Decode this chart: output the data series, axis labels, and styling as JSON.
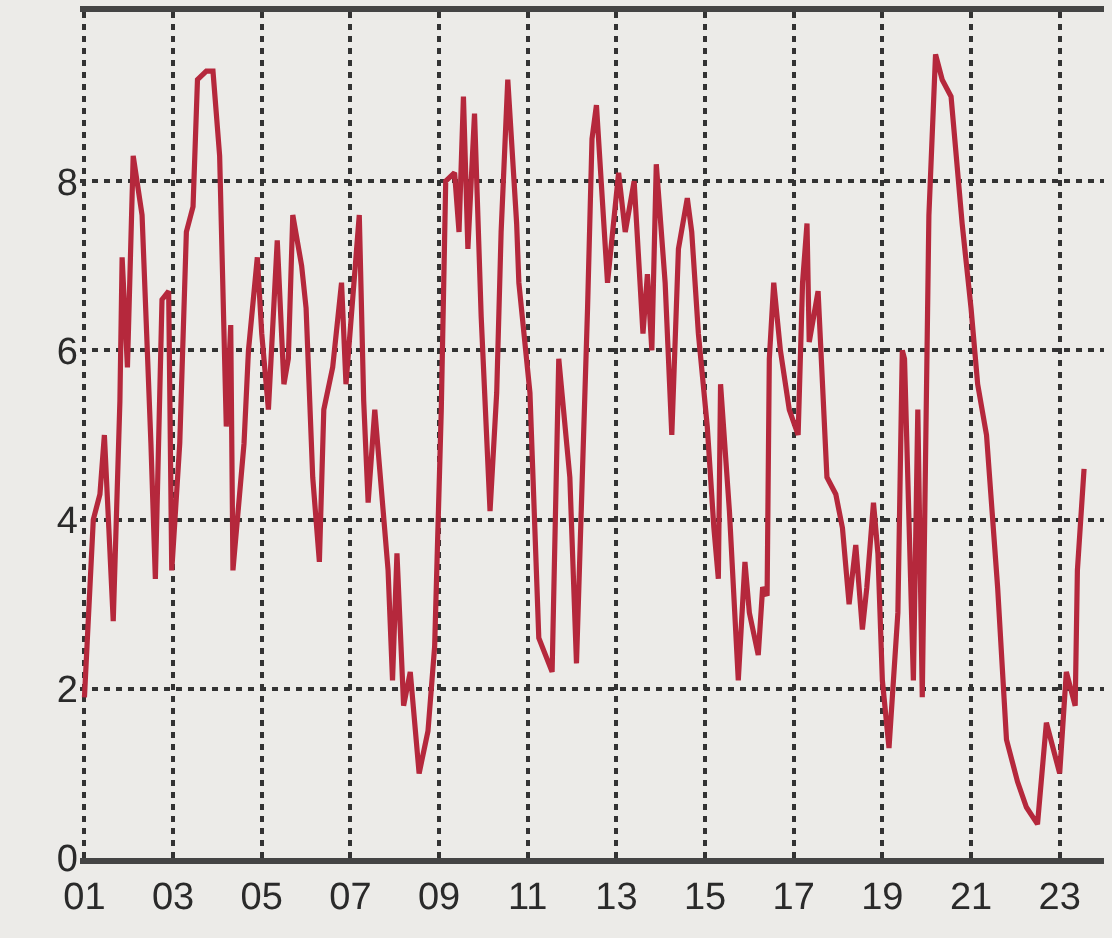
{
  "chart_data": {
    "type": "line",
    "x": [
      2001.0,
      2001.2,
      2001.35,
      2001.45,
      2001.55,
      2001.65,
      2001.8,
      2001.85,
      2001.97,
      2002.1,
      2002.3,
      2002.5,
      2002.6,
      2002.75,
      2002.9,
      2002.97,
      2003.15,
      2003.3,
      2003.45,
      2003.55,
      2003.75,
      2003.9,
      2004.05,
      2004.2,
      2004.3,
      2004.35,
      2004.6,
      2004.7,
      2004.9,
      2005.0,
      2005.15,
      2005.35,
      2005.5,
      2005.6,
      2005.7,
      2005.9,
      2006.0,
      2006.15,
      2006.3,
      2006.4,
      2006.6,
      2006.8,
      2006.9,
      2007.2,
      2007.3,
      2007.4,
      2007.55,
      2007.85,
      2007.95,
      2008.05,
      2008.2,
      2008.35,
      2008.55,
      2008.75,
      2008.9,
      2009.05,
      2009.15,
      2009.35,
      2009.45,
      2009.55,
      2009.65,
      2009.8,
      2009.95,
      2010.15,
      2010.3,
      2010.4,
      2010.55,
      2010.75,
      2010.8,
      2011.05,
      2011.25,
      2011.55,
      2011.7,
      2011.95,
      2012.1,
      2012.35,
      2012.45,
      2012.55,
      2012.8,
      2013.05,
      2013.2,
      2013.4,
      2013.6,
      2013.7,
      2013.8,
      2013.9,
      2014.1,
      2014.25,
      2014.4,
      2014.6,
      2014.7,
      2014.85,
      2015.05,
      2015.2,
      2015.3,
      2015.35,
      2015.55,
      2015.75,
      2015.9,
      2016.0,
      2016.2,
      2016.3,
      2016.4,
      2016.45,
      2016.55,
      2016.7,
      2016.9,
      2017.1,
      2017.2,
      2017.3,
      2017.35,
      2017.55,
      2017.75,
      2017.95,
      2018.1,
      2018.25,
      2018.4,
      2018.55,
      2018.65,
      2018.8,
      2018.9,
      2019.0,
      2019.15,
      2019.35,
      2019.45,
      2019.5,
      2019.7,
      2019.8,
      2019.9,
      2020.05,
      2020.2,
      2020.35,
      2020.55,
      2020.8,
      2021.0,
      2021.15,
      2021.35,
      2021.6,
      2021.8,
      2022.05,
      2022.25,
      2022.5,
      2022.7,
      2022.85,
      2023.0,
      2023.15,
      2023.35,
      2023.4,
      2023.55
    ],
    "series": [
      {
        "color": "#b5283c",
        "values": [
          1.9,
          4.0,
          4.3,
          5.0,
          3.9,
          2.8,
          5.4,
          7.1,
          5.8,
          8.3,
          7.6,
          4.9,
          3.3,
          6.6,
          6.7,
          3.4,
          4.9,
          7.4,
          7.7,
          9.2,
          9.3,
          9.3,
          8.3,
          5.1,
          6.3,
          3.4,
          4.9,
          6.0,
          7.1,
          6.2,
          5.3,
          7.3,
          5.6,
          5.9,
          7.6,
          7.0,
          6.5,
          4.5,
          3.5,
          5.3,
          5.8,
          6.8,
          5.6,
          7.6,
          5.4,
          4.2,
          5.3,
          3.4,
          2.1,
          3.6,
          1.8,
          2.2,
          1.0,
          1.5,
          2.5,
          5.3,
          8.0,
          8.1,
          7.4,
          9.0,
          7.2,
          8.8,
          6.4,
          4.1,
          5.5,
          7.4,
          9.2,
          7.5,
          6.8,
          5.5,
          2.6,
          2.2,
          5.9,
          4.5,
          2.3,
          6.5,
          8.5,
          8.9,
          6.8,
          8.1,
          7.4,
          8.0,
          6.2,
          6.9,
          6.0,
          8.2,
          6.8,
          5.0,
          7.2,
          7.8,
          7.4,
          6.2,
          5.1,
          3.9,
          3.3,
          5.6,
          4.1,
          2.1,
          3.5,
          2.9,
          2.4,
          3.2,
          3.1,
          5.9,
          6.8,
          6.0,
          5.3,
          5.0,
          6.8,
          7.5,
          6.1,
          6.7,
          4.5,
          4.3,
          3.9,
          3.0,
          3.7,
          2.7,
          3.2,
          4.2,
          3.6,
          2.1,
          1.3,
          2.9,
          6.0,
          5.9,
          2.1,
          5.3,
          1.9,
          7.6,
          9.5,
          9.2,
          9.0,
          7.5,
          6.5,
          5.6,
          5.0,
          3.2,
          1.4,
          0.9,
          0.6,
          0.4,
          1.6,
          1.3,
          1.0,
          2.2,
          1.8,
          3.4,
          4.6
        ]
      }
    ],
    "xlim": [
      2000.9,
      2024.0
    ],
    "xticks": [
      {
        "value": 2001,
        "label": "01"
      },
      {
        "value": 2003,
        "label": "03"
      },
      {
        "value": 2005,
        "label": "05"
      },
      {
        "value": 2007,
        "label": "07"
      },
      {
        "value": 2009,
        "label": "09"
      },
      {
        "value": 2011,
        "label": "11"
      },
      {
        "value": 2013,
        "label": "13"
      },
      {
        "value": 2015,
        "label": "15"
      },
      {
        "value": 2017,
        "label": "17"
      },
      {
        "value": 2019,
        "label": "19"
      },
      {
        "value": 2021,
        "label": "21"
      },
      {
        "value": 2023,
        "label": "23"
      }
    ],
    "ylim": [
      0,
      10
    ],
    "yticks": [
      0,
      2,
      4,
      6,
      8
    ],
    "grid": true,
    "marker": "none",
    "line_style": "solid"
  }
}
